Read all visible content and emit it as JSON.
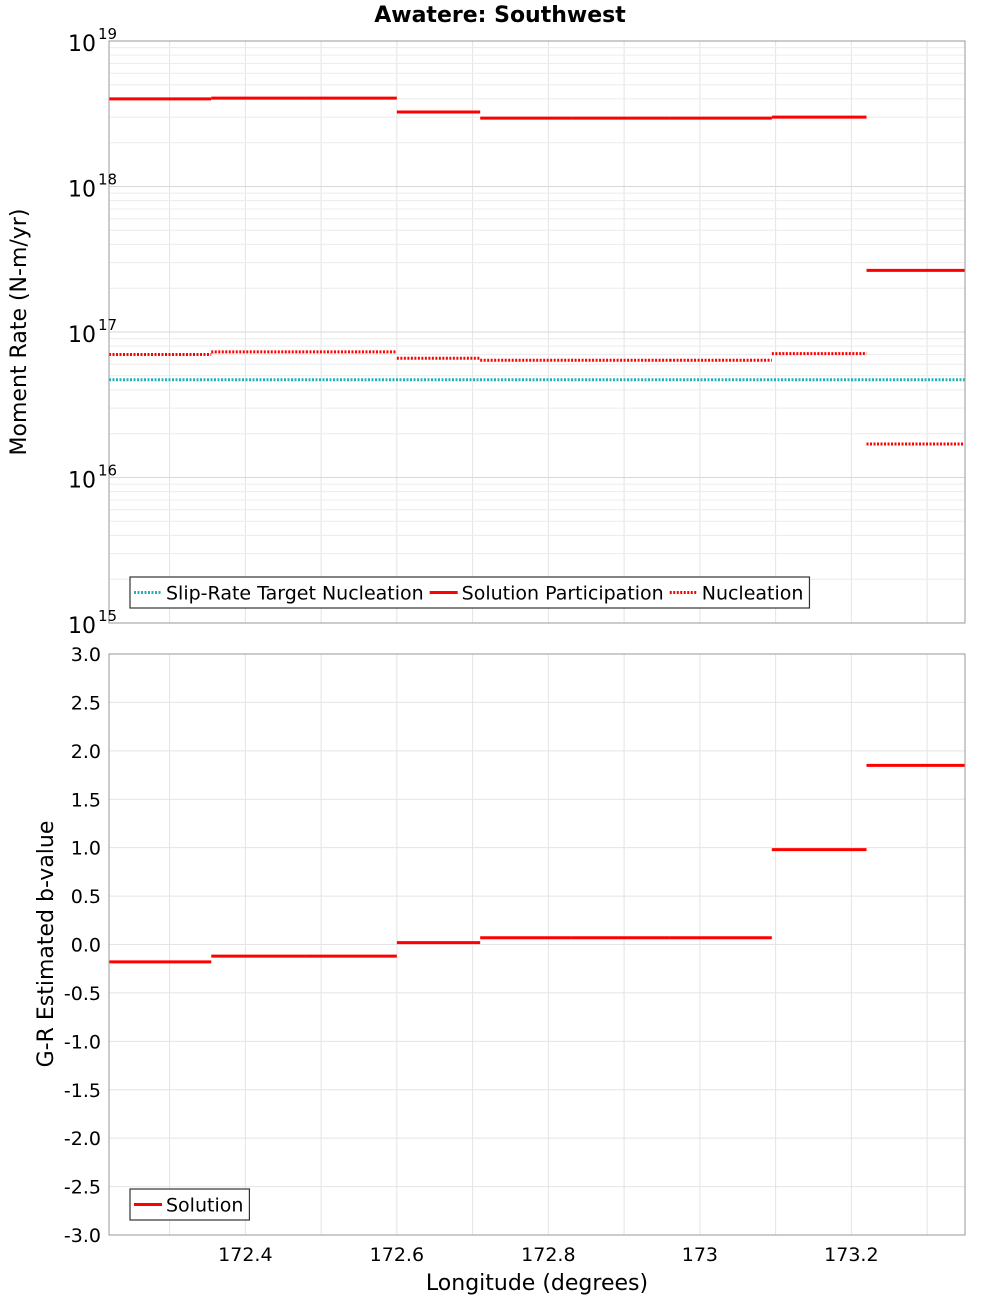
{
  "title": "Awatere: Southwest",
  "x_axis": {
    "label": "Longitude (degrees)",
    "ticks": [
      {
        "value": 172.4,
        "label": "172.4"
      },
      {
        "value": 172.6,
        "label": "172.6"
      },
      {
        "value": 172.8,
        "label": "172.8"
      },
      {
        "value": 173.0,
        "label": "173"
      },
      {
        "value": 173.2,
        "label": "173.2"
      }
    ]
  },
  "colors": {
    "solution": "#ff0000",
    "target": "#20b2b4",
    "grid": "#e4e4e4",
    "frame": "#999999"
  },
  "chart_data": [
    {
      "type": "line",
      "title": "Awatere: Southwest",
      "xlabel": "Longitude (degrees)",
      "ylabel": "Moment Rate (N-m/yr)",
      "xlim": [
        172.22,
        173.35
      ],
      "ylim": [
        1000000000000000.0,
        1e+19
      ],
      "yscale": "log",
      "y_ticks": [
        {
          "value": 1000000000000000.0,
          "base": "10",
          "exp": "15"
        },
        {
          "value": 1e+16,
          "base": "10",
          "exp": "16"
        },
        {
          "value": 1e+17,
          "base": "10",
          "exp": "17"
        },
        {
          "value": 1e+18,
          "base": "10",
          "exp": "18"
        },
        {
          "value": 1e+19,
          "base": "10",
          "exp": "19"
        }
      ],
      "grid": true,
      "legend_position": "bottom-left",
      "series": [
        {
          "name": "Slip-Rate Target Nucleation",
          "style": "dotted",
          "color": "#20b2b4",
          "segments": [
            {
              "x0": 172.22,
              "x1": 173.35,
              "y": 4.7e+16
            }
          ]
        },
        {
          "name": "Solution Participation",
          "style": "solid",
          "color": "#ff0000",
          "segments": [
            {
              "x0": 172.22,
              "x1": 172.355,
              "y": 4e+18
            },
            {
              "x0": 172.355,
              "x1": 172.48,
              "y": 4.05e+18
            },
            {
              "x0": 172.48,
              "x1": 172.6,
              "y": 4.05e+18
            },
            {
              "x0": 172.6,
              "x1": 172.71,
              "y": 3.25e+18
            },
            {
              "x0": 172.71,
              "x1": 172.83,
              "y": 2.95e+18
            },
            {
              "x0": 172.83,
              "x1": 172.96,
              "y": 2.95e+18
            },
            {
              "x0": 172.96,
              "x1": 173.095,
              "y": 2.95e+18
            },
            {
              "x0": 173.095,
              "x1": 173.22,
              "y": 3e+18
            },
            {
              "x0": 173.22,
              "x1": 173.35,
              "y": 2.65e+17
            }
          ]
        },
        {
          "name": "Nucleation",
          "style": "dotted",
          "color": "#ff0000",
          "segments": [
            {
              "x0": 172.22,
              "x1": 172.355,
              "y": 7e+16
            },
            {
              "x0": 172.355,
              "x1": 172.48,
              "y": 7.3e+16
            },
            {
              "x0": 172.48,
              "x1": 172.6,
              "y": 7.3e+16
            },
            {
              "x0": 172.6,
              "x1": 172.71,
              "y": 6.6e+16
            },
            {
              "x0": 172.71,
              "x1": 172.83,
              "y": 6.4e+16
            },
            {
              "x0": 172.83,
              "x1": 172.96,
              "y": 6.4e+16
            },
            {
              "x0": 172.96,
              "x1": 173.095,
              "y": 6.4e+16
            },
            {
              "x0": 173.095,
              "x1": 173.22,
              "y": 7.1e+16
            },
            {
              "x0": 173.22,
              "x1": 173.35,
              "y": 1.7e+16
            }
          ]
        }
      ]
    },
    {
      "type": "line",
      "xlabel": "Longitude (degrees)",
      "ylabel": "G-R Estimated b-value",
      "xlim": [
        172.22,
        173.35
      ],
      "ylim": [
        -3.0,
        3.0
      ],
      "y_ticks": [
        {
          "value": 3.0,
          "label": "3.0"
        },
        {
          "value": 2.5,
          "label": "2.5"
        },
        {
          "value": 2.0,
          "label": "2.0"
        },
        {
          "value": 1.5,
          "label": "1.5"
        },
        {
          "value": 1.0,
          "label": "1.0"
        },
        {
          "value": 0.5,
          "label": "0.5"
        },
        {
          "value": 0.0,
          "label": "0.0"
        },
        {
          "value": -0.5,
          "label": "-0.5"
        },
        {
          "value": -1.0,
          "label": "-1.0"
        },
        {
          "value": -1.5,
          "label": "-1.5"
        },
        {
          "value": -2.0,
          "label": "-2.0"
        },
        {
          "value": -2.5,
          "label": "-2.5"
        },
        {
          "value": -3.0,
          "label": "-3.0"
        }
      ],
      "grid": true,
      "legend_position": "bottom-left",
      "series": [
        {
          "name": "Solution",
          "style": "solid",
          "color": "#ff0000",
          "segments": [
            {
              "x0": 172.22,
              "x1": 172.355,
              "y": -0.18
            },
            {
              "x0": 172.355,
              "x1": 172.48,
              "y": -0.12
            },
            {
              "x0": 172.48,
              "x1": 172.6,
              "y": -0.12
            },
            {
              "x0": 172.6,
              "x1": 172.71,
              "y": 0.02
            },
            {
              "x0": 172.71,
              "x1": 172.83,
              "y": 0.07
            },
            {
              "x0": 172.83,
              "x1": 172.96,
              "y": 0.07
            },
            {
              "x0": 172.96,
              "x1": 173.095,
              "y": 0.07
            },
            {
              "x0": 173.095,
              "x1": 173.22,
              "y": 0.98
            },
            {
              "x0": 173.22,
              "x1": 173.35,
              "y": 1.85
            }
          ]
        }
      ]
    }
  ]
}
